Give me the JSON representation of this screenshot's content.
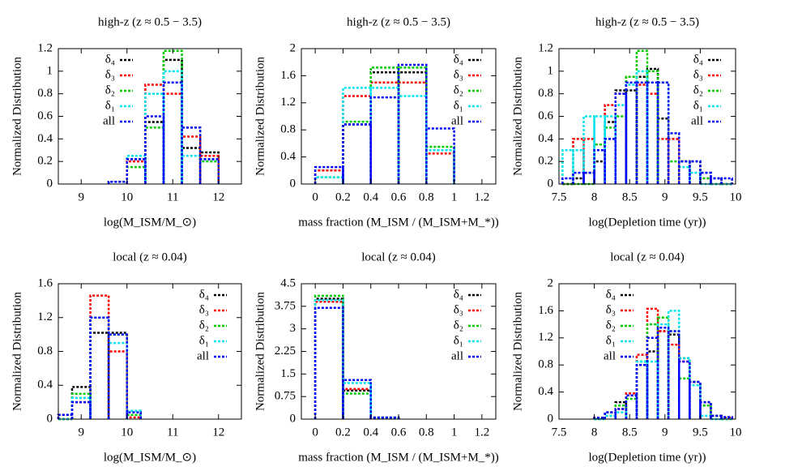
{
  "chart_data": [
    {
      "type": "histogram",
      "title": "high-z (z ≈ 0.5 − 3.5)",
      "x_label": "log(M_ISM/M_⊙)",
      "y_label": "Normalized Distribution",
      "legend": "top-left",
      "xlim": [
        8.5,
        12.5
      ],
      "xticks": [
        9,
        10,
        11,
        12
      ],
      "ylim": [
        0,
        1.2
      ],
      "yticks": [
        0,
        0.2,
        0.4,
        0.6,
        0.8,
        1,
        1.2
      ],
      "bins": [
        9.6,
        10,
        10.4,
        10.8,
        11.2,
        11.6,
        12
      ],
      "series": [
        {
          "name": "δ₄",
          "color": "#000000",
          "values": [
            0.02,
            0.22,
            0.55,
            1.1,
            0.32,
            0.28
          ]
        },
        {
          "name": "δ₃",
          "color": "#ff0000",
          "values": [
            0.02,
            0.2,
            0.88,
            0.8,
            0.42,
            0.25
          ]
        },
        {
          "name": "δ₂",
          "color": "#00cc00",
          "values": [
            0.02,
            0.15,
            0.5,
            1.18,
            0.5,
            0.2
          ]
        },
        {
          "name": "δ₁",
          "color": "#00e5ee",
          "values": [
            0.02,
            0.25,
            0.8,
            1.0,
            0.25,
            0.22
          ]
        },
        {
          "name": "all",
          "color": "#0000ff",
          "values": [
            0.02,
            0.22,
            0.6,
            0.9,
            0.5,
            0.22
          ]
        }
      ]
    },
    {
      "type": "histogram",
      "title": "high-z (z ≈ 0.5 − 3.5)",
      "x_label": "mass fraction (M_ISM / (M_ISM+M_*))",
      "y_label": "Normalized Distribution",
      "legend": "top-right",
      "xlim": [
        -0.1,
        1.3
      ],
      "xticks": [
        0,
        0.2,
        0.4,
        0.6,
        0.8,
        1,
        1.2
      ],
      "ylim": [
        0,
        2
      ],
      "yticks": [
        0,
        0.4,
        0.8,
        1.2,
        1.6,
        2
      ],
      "bins": [
        0,
        0.2,
        0.4,
        0.6,
        0.8,
        1
      ],
      "series": [
        {
          "name": "δ₄",
          "color": "#000000",
          "values": [
            0.2,
            0.88,
            1.65,
            1.65,
            0.5
          ]
        },
        {
          "name": "δ₃",
          "color": "#ff0000",
          "values": [
            0.2,
            1.3,
            1.5,
            1.5,
            0.45
          ]
        },
        {
          "name": "δ₂",
          "color": "#00cc00",
          "values": [
            0.1,
            0.92,
            1.72,
            1.72,
            0.55
          ]
        },
        {
          "name": "δ₁",
          "color": "#00e5ee",
          "values": [
            0.1,
            1.42,
            1.42,
            1.3,
            0.5
          ]
        },
        {
          "name": "all",
          "color": "#0000ff",
          "values": [
            0.25,
            0.88,
            1.28,
            1.76,
            0.82
          ]
        }
      ]
    },
    {
      "type": "histogram",
      "title": "high-z (z ≈ 0.5 − 3.5)",
      "x_label": "log(Depletion time (yr))",
      "y_label": "Normalized Distribution",
      "legend": "top-right",
      "xlim": [
        7.5,
        10
      ],
      "xticks": [
        7.5,
        8,
        8.5,
        9,
        9.5,
        10
      ],
      "ylim": [
        0,
        1.2
      ],
      "yticks": [
        0,
        0.2,
        0.4,
        0.6,
        0.8,
        1,
        1.2
      ],
      "bins": [
        7.55,
        7.7,
        7.85,
        8.0,
        8.15,
        8.3,
        8.45,
        8.6,
        8.75,
        8.9,
        9.05,
        9.2,
        9.35,
        9.5,
        9.65,
        9.8,
        9.95
      ],
      "series": [
        {
          "name": "δ₄",
          "color": "#000000",
          "values": [
            0,
            0.05,
            0.1,
            0.2,
            0.55,
            0.83,
            0.83,
            0.95,
            1.02,
            0.58,
            0.4,
            0.2,
            0.2,
            0.1,
            0.05,
            0
          ]
        },
        {
          "name": "δ₃",
          "color": "#ff0000",
          "values": [
            0,
            0.4,
            0.4,
            0.35,
            0.7,
            0.8,
            0.95,
            0.88,
            0.8,
            0.4,
            0.4,
            0.2,
            0.2,
            0.05,
            0,
            0
          ]
        },
        {
          "name": "δ₂",
          "color": "#00cc00",
          "values": [
            0,
            0,
            0,
            0.35,
            0.5,
            0.6,
            0.95,
            1.18,
            1.0,
            0.9,
            0.2,
            0.2,
            0.2,
            0.05,
            0,
            0
          ]
        },
        {
          "name": "δ₁",
          "color": "#00e5ee",
          "values": [
            0.3,
            0.3,
            0.6,
            0.6,
            0.6,
            0.7,
            0.88,
            1.0,
            0.9,
            0.9,
            0.45,
            0.15,
            0.1,
            0,
            0,
            0
          ]
        },
        {
          "name": "all",
          "color": "#0000ff",
          "values": [
            0.05,
            0.1,
            0.1,
            0.3,
            0.4,
            0.8,
            0.9,
            0.9,
            0.9,
            0.9,
            0.45,
            0.2,
            0.2,
            0.1,
            0.05,
            0.05
          ]
        }
      ]
    },
    {
      "type": "histogram",
      "title": "local (z ≈ 0.04)",
      "x_label": "log(M_ISM/M_⊙)",
      "y_label": "Normalized Distribution",
      "legend": "top-right",
      "xlim": [
        8.5,
        12.5
      ],
      "xticks": [
        9,
        10,
        11,
        12
      ],
      "ylim": [
        0,
        1.6
      ],
      "yticks": [
        0,
        0.4,
        0.8,
        1.2,
        1.6
      ],
      "bins": [
        8.5,
        8.8,
        9.2,
        9.6,
        10,
        10.3
      ],
      "series": [
        {
          "name": "δ₄",
          "color": "#000000",
          "values": [
            0.05,
            0.38,
            1.02,
            1.02,
            0.05
          ]
        },
        {
          "name": "δ₃",
          "color": "#ff0000",
          "values": [
            0,
            0.2,
            1.46,
            0.8,
            0.02
          ]
        },
        {
          "name": "δ₂",
          "color": "#00cc00",
          "values": [
            0,
            0.3,
            1.2,
            1.0,
            0.05
          ]
        },
        {
          "name": "δ₁",
          "color": "#00e5ee",
          "values": [
            0,
            0.25,
            1.2,
            0.9,
            0.1
          ]
        },
        {
          "name": "all",
          "color": "#0000ff",
          "values": [
            0.05,
            0.2,
            1.2,
            1.0,
            0.08
          ]
        }
      ]
    },
    {
      "type": "histogram",
      "title": "local (z ≈ 0.04)",
      "x_label": "mass fraction (M_ISM / (M_ISM+M_*))",
      "y_label": "Normalized Distribution",
      "legend": "top-right",
      "xlim": [
        -0.1,
        1.3
      ],
      "xticks": [
        0,
        0.2,
        0.4,
        0.6,
        0.8,
        1,
        1.2
      ],
      "ylim": [
        0,
        4.5
      ],
      "yticks": [
        0,
        0.75,
        1.5,
        2.25,
        3,
        3.75,
        4.5
      ],
      "bins": [
        0,
        0.2,
        0.4,
        0.6
      ],
      "series": [
        {
          "name": "δ₄",
          "color": "#000000",
          "values": [
            4.0,
            0.95,
            0.05
          ]
        },
        {
          "name": "δ₃",
          "color": "#ff0000",
          "values": [
            3.9,
            1.0,
            0.05
          ]
        },
        {
          "name": "δ₂",
          "color": "#00cc00",
          "values": [
            4.1,
            0.85,
            0.05
          ]
        },
        {
          "name": "δ₁",
          "color": "#00e5ee",
          "values": [
            3.95,
            1.2,
            0.05
          ]
        },
        {
          "name": "all",
          "color": "#0000ff",
          "values": [
            3.7,
            1.3,
            0.05
          ]
        }
      ]
    },
    {
      "type": "histogram",
      "title": "local (z ≈ 0.04)",
      "x_label": "log(Depletion time (yr))",
      "y_label": "Normalized Distribution",
      "legend": "top-left",
      "xlim": [
        7.5,
        10
      ],
      "xticks": [
        7.5,
        8,
        8.5,
        9,
        9.5,
        10
      ],
      "ylim": [
        0,
        2
      ],
      "yticks": [
        0,
        0.4,
        0.8,
        1.2,
        1.6,
        2
      ],
      "bins": [
        8.0,
        8.15,
        8.3,
        8.45,
        8.6,
        8.75,
        8.9,
        9.05,
        9.2,
        9.35,
        9.5,
        9.65,
        9.8,
        9.95
      ],
      "series": [
        {
          "name": "δ₄",
          "color": "#000000",
          "values": [
            0.02,
            0.1,
            0.25,
            0.35,
            0.8,
            1.0,
            1.3,
            1.25,
            0.9,
            0.55,
            0.25,
            0.05,
            0.02
          ]
        },
        {
          "name": "δ₃",
          "color": "#ff0000",
          "values": [
            0.02,
            0.05,
            0.15,
            0.38,
            0.95,
            1.63,
            1.3,
            1.1,
            0.85,
            0.55,
            0.2,
            0.05,
            0.02
          ]
        },
        {
          "name": "δ₂",
          "color": "#00cc00",
          "values": [
            0,
            0.05,
            0.2,
            0.3,
            0.85,
            1.4,
            1.5,
            1.3,
            0.6,
            0.55,
            0.2,
            0.05,
            0
          ]
        },
        {
          "name": "δ₁",
          "color": "#00e5ee",
          "values": [
            0,
            0.05,
            0.1,
            0.35,
            0.85,
            0.85,
            1.4,
            1.6,
            0.9,
            0.5,
            0.05,
            0,
            0
          ]
        },
        {
          "name": "all",
          "color": "#0000ff",
          "values": [
            0.02,
            0.1,
            0.15,
            0.35,
            0.8,
            1.2,
            1.35,
            1.3,
            0.85,
            0.55,
            0.25,
            0.05,
            0.03
          ]
        }
      ]
    }
  ]
}
